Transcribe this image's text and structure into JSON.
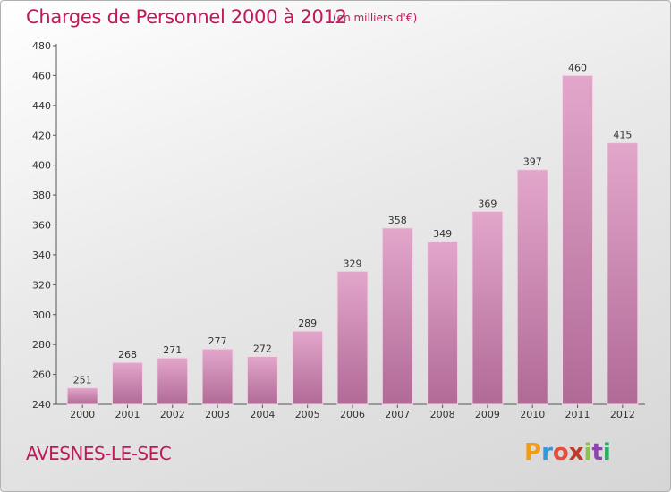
{
  "title": "Charges de Personnel 2000 à 2012",
  "subtitle": "(en milliers d'€)",
  "commune": "AVESNES-LE-SEC",
  "logo": {
    "letters": [
      "P",
      "r",
      "o",
      "x",
      "i",
      "t",
      "i"
    ],
    "colors": [
      "#f39c12",
      "#3498db",
      "#e74c3c",
      "#c0392b",
      "#8bc34a",
      "#8e44ad",
      "#27ae60"
    ]
  },
  "colors": {
    "bar_top": "#e3a6cb",
    "bar_bottom": "#b06a96",
    "accent": "#c2185b"
  },
  "chart_data": {
    "type": "bar",
    "categories": [
      "2000",
      "2001",
      "2002",
      "2003",
      "2004",
      "2005",
      "2006",
      "2007",
      "2008",
      "2009",
      "2010",
      "2011",
      "2012"
    ],
    "values": [
      251,
      268,
      271,
      277,
      272,
      289,
      329,
      358,
      349,
      369,
      397,
      460,
      415
    ],
    "ylim": [
      240,
      480
    ],
    "yticks": [
      240,
      260,
      280,
      300,
      320,
      340,
      360,
      380,
      400,
      420,
      440,
      460,
      480
    ],
    "grid": false,
    "data_labels": true
  }
}
